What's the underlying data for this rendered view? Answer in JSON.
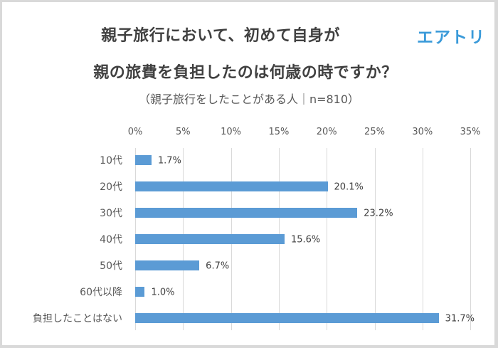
{
  "header": {
    "title_line1": "親子旅行において、初めて自身が",
    "title_line2": "親の旅費を負担したのは何歳の時ですか？",
    "subtitle": "（親子旅行をしたことがある人｜n=810）",
    "logo": "エアトリ"
  },
  "colors": {
    "bar": "#5b9bd5",
    "logo": "#3a9ad9",
    "grid": "#d9d9d9"
  },
  "chart_data": {
    "type": "bar",
    "orientation": "horizontal",
    "title": "親子旅行において、初めて自身が親の旅費を負担したのは何歳の時ですか？",
    "subtitle": "（親子旅行をしたことがある人｜n=810）",
    "categories": [
      "10代",
      "20代",
      "30代",
      "40代",
      "50代",
      "60代以降",
      "負担したことはない"
    ],
    "values": [
      1.7,
      20.1,
      23.2,
      15.6,
      6.7,
      1.0,
      31.7
    ],
    "value_labels": [
      "1.7%",
      "20.1%",
      "23.2%",
      "15.6%",
      "6.7%",
      "1.0%",
      "31.7%"
    ],
    "xlabel": "",
    "ylabel": "",
    "xlim": [
      0,
      35
    ],
    "ticks": [
      0,
      5,
      10,
      15,
      20,
      25,
      30,
      35
    ],
    "tick_labels": [
      "0%",
      "5%",
      "10%",
      "15%",
      "20%",
      "25%",
      "30%",
      "35%"
    ],
    "axis_position": "top",
    "grid": true,
    "legend": null
  }
}
